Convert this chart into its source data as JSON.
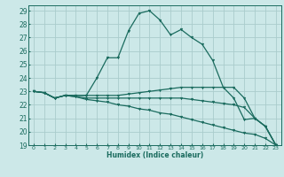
{
  "title": "",
  "xlabel": "Humidex (Indice chaleur)",
  "bg_color": "#cce8e8",
  "grid_color": "#aacccc",
  "line_color": "#1a6b5e",
  "xlim": [
    -0.5,
    23.5
  ],
  "ylim": [
    19,
    29.4
  ],
  "yticks": [
    19,
    20,
    21,
    22,
    23,
    24,
    25,
    26,
    27,
    28,
    29
  ],
  "xticks": [
    0,
    1,
    2,
    3,
    4,
    5,
    6,
    7,
    8,
    9,
    10,
    11,
    12,
    13,
    14,
    15,
    16,
    17,
    18,
    19,
    20,
    21,
    22,
    23
  ],
  "curves": [
    {
      "x": [
        0,
        1,
        2,
        3,
        4,
        5,
        6,
        7,
        8,
        9,
        10,
        11,
        12,
        13,
        14,
        15,
        16,
        17,
        18,
        19,
        20,
        21,
        22,
        23
      ],
      "y": [
        23.0,
        22.9,
        22.5,
        22.7,
        22.7,
        22.7,
        24.0,
        25.5,
        25.5,
        27.5,
        28.8,
        29.0,
        28.3,
        27.2,
        27.6,
        27.0,
        26.5,
        25.3,
        23.3,
        22.5,
        20.9,
        21.0,
        20.4,
        19.0
      ]
    },
    {
      "x": [
        0,
        1,
        2,
        3,
        4,
        5,
        6,
        7,
        8,
        9,
        10,
        11,
        12,
        13,
        14,
        15,
        16,
        17,
        18,
        19,
        20,
        21,
        22,
        23
      ],
      "y": [
        23.0,
        22.9,
        22.5,
        22.7,
        22.7,
        22.7,
        22.7,
        22.7,
        22.7,
        22.8,
        22.9,
        23.0,
        23.1,
        23.2,
        23.3,
        23.3,
        23.3,
        23.3,
        23.3,
        23.3,
        22.5,
        21.0,
        20.4,
        19.0
      ]
    },
    {
      "x": [
        0,
        1,
        2,
        3,
        4,
        5,
        6,
        7,
        8,
        9,
        10,
        11,
        12,
        13,
        14,
        15,
        16,
        17,
        18,
        19,
        20,
        21,
        22,
        23
      ],
      "y": [
        23.0,
        22.9,
        22.5,
        22.7,
        22.6,
        22.5,
        22.5,
        22.5,
        22.5,
        22.5,
        22.5,
        22.5,
        22.5,
        22.5,
        22.5,
        22.4,
        22.3,
        22.2,
        22.1,
        22.0,
        21.8,
        21.0,
        20.4,
        19.0
      ]
    },
    {
      "x": [
        0,
        1,
        2,
        3,
        4,
        5,
        6,
        7,
        8,
        9,
        10,
        11,
        12,
        13,
        14,
        15,
        16,
        17,
        18,
        19,
        20,
        21,
        22,
        23
      ],
      "y": [
        23.0,
        22.9,
        22.5,
        22.7,
        22.6,
        22.4,
        22.3,
        22.2,
        22.0,
        21.9,
        21.7,
        21.6,
        21.4,
        21.3,
        21.1,
        20.9,
        20.7,
        20.5,
        20.3,
        20.1,
        19.9,
        19.8,
        19.5,
        19.0
      ]
    }
  ]
}
